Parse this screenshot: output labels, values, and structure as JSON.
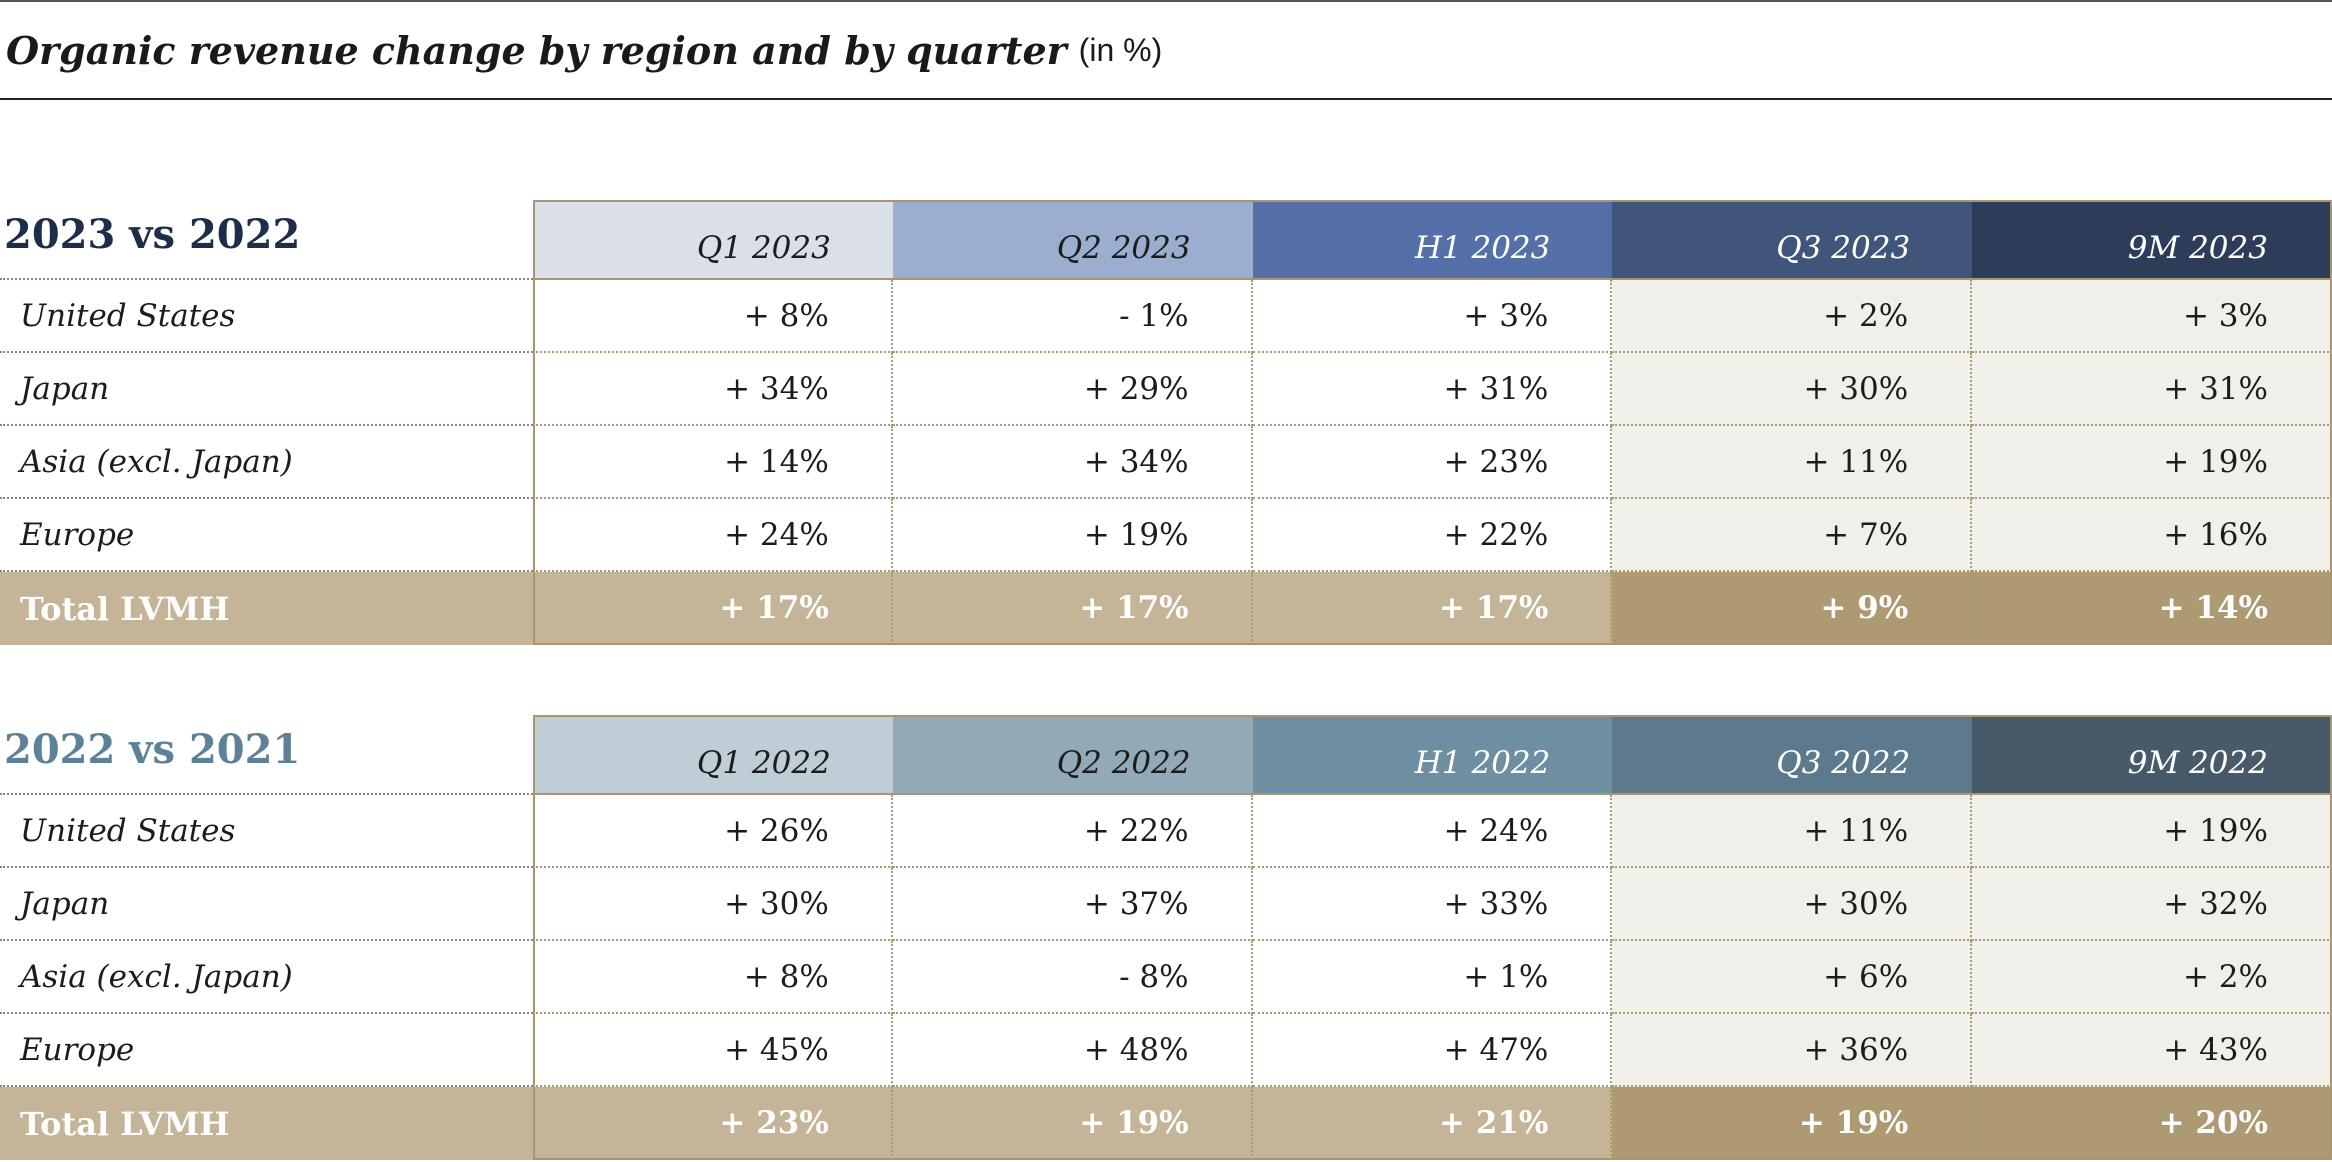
{
  "title": {
    "main": "Organic revenue change by region and by quarter",
    "unit": "(in %)"
  },
  "colors": {
    "header_2023": [
      "#dadfe9",
      "#9caed0",
      "#5570a8",
      "#3f567a",
      "#2d3d59"
    ],
    "header_2023_text": [
      "#1c1c1c",
      "#1c1c1c",
      "#ffffff",
      "#ffffff",
      "#ffffff"
    ],
    "header_2022": [
      "#bfcdd6",
      "#92a9b8",
      "#6e8ea2",
      "#5d798d",
      "#465a6a"
    ],
    "header_2022_text": [
      "#1c1c1c",
      "#1c1c1c",
      "#ffffff",
      "#ffffff",
      "#ffffff"
    ],
    "total_light": "#c5b598",
    "total_dark": "#ad9a72",
    "shade": "#f1efea"
  },
  "tables": {
    "t2023": {
      "label": "2023 vs 2022",
      "columns": [
        "Q1 2023",
        "Q2 2023",
        "H1 2023",
        "Q3 2023",
        "9M 2023"
      ],
      "rows": [
        {
          "region": "United States",
          "values": [
            "+ 8%",
            "- 1%",
            "+ 3%",
            "+ 2%",
            "+ 3%"
          ]
        },
        {
          "region": "Japan",
          "values": [
            "+ 34%",
            "+ 29%",
            "+ 31%",
            "+ 30%",
            "+ 31%"
          ]
        },
        {
          "region": "Asia (excl. Japan)",
          "values": [
            "+ 14%",
            "+ 34%",
            "+ 23%",
            "+ 11%",
            "+ 19%"
          ]
        },
        {
          "region": "Europe",
          "values": [
            "+ 24%",
            "+ 19%",
            "+ 22%",
            "+ 7%",
            "+ 16%"
          ]
        }
      ],
      "total": {
        "region": "Total LVMH",
        "values": [
          "+ 17%",
          "+ 17%",
          "+ 17%",
          "+ 9%",
          "+ 14%"
        ]
      }
    },
    "t2022": {
      "label": "2022 vs 2021",
      "columns": [
        "Q1 2022",
        "Q2 2022",
        "H1 2022",
        "Q3 2022",
        "9M 2022"
      ],
      "rows": [
        {
          "region": "United States",
          "values": [
            "+ 26%",
            "+ 22%",
            "+ 24%",
            "+ 11%",
            "+ 19%"
          ]
        },
        {
          "region": "Japan",
          "values": [
            "+ 30%",
            "+ 37%",
            "+ 33%",
            "+ 30%",
            "+ 32%"
          ]
        },
        {
          "region": "Asia (excl. Japan)",
          "values": [
            "+ 8%",
            "- 8%",
            "+ 1%",
            "+ 6%",
            "+ 2%"
          ]
        },
        {
          "region": "Europe",
          "values": [
            "+ 45%",
            "+ 48%",
            "+ 47%",
            "+ 36%",
            "+ 43%"
          ]
        }
      ],
      "total": {
        "region": "Total LVMH",
        "values": [
          "+ 23%",
          "+ 19%",
          "+ 21%",
          "+ 19%",
          "+ 20%"
        ]
      }
    }
  }
}
